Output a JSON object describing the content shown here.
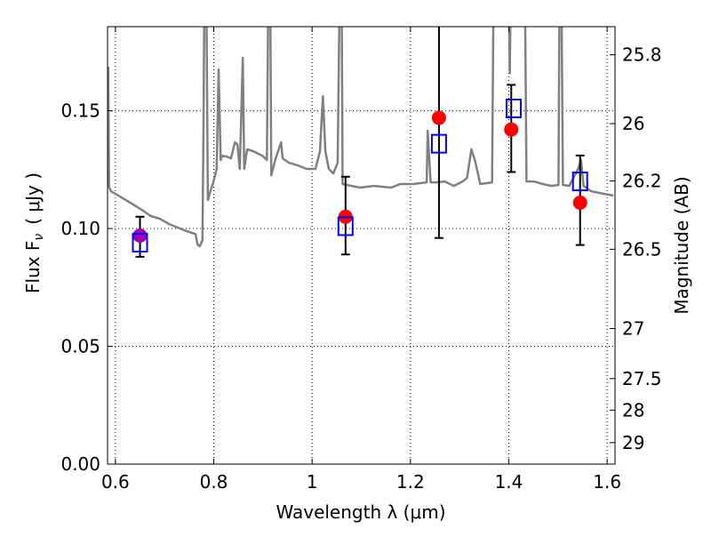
{
  "chart_data": {
    "type": "scatter",
    "xlabel": "Wavelength  λ (μm)",
    "ylabel": "Flux  F",
    "ylabel_sub": "ν",
    "ylabel_unit": "( μJy )",
    "y2label": "Magnitude (AB)",
    "xlim": [
      0.584,
      1.616
    ],
    "ylim": [
      0.0,
      0.1857
    ],
    "xticks": [
      0.6,
      0.8,
      1.0,
      1.2,
      1.4,
      1.6
    ],
    "xtick_labels": [
      "0.6",
      "0.8",
      "1",
      "1.2",
      "1.4",
      "1.6"
    ],
    "yticks": [
      0.0,
      0.05,
      0.1,
      0.15
    ],
    "ytick_labels": [
      "0.00",
      "0.05",
      "0.10",
      "0.15"
    ],
    "y2ticks": [
      25.8,
      26,
      26.2,
      26.5,
      27,
      27.5,
      28,
      29
    ],
    "y2tick_labels": [
      "25.8",
      "26",
      "26.2",
      "26.5",
      "27",
      "27.5",
      "28",
      "29"
    ],
    "ab_zeropoint": 23.9,
    "grid": true,
    "colors": {
      "spectrum": "#808080",
      "observed": "#ff0000",
      "model": "#0000ff",
      "first_observed": "#a000b0",
      "errorbar": "#000000"
    },
    "spectrum": [
      [
        0.5855,
        0.1687
      ],
      [
        0.587,
        0.1177
      ],
      [
        0.591,
        0.1158
      ],
      [
        0.6,
        0.1147
      ],
      [
        0.618,
        0.1125
      ],
      [
        0.636,
        0.1102
      ],
      [
        0.654,
        0.1079
      ],
      [
        0.672,
        0.1053
      ],
      [
        0.69,
        0.1042
      ],
      [
        0.709,
        0.1019
      ],
      [
        0.727,
        0.1004
      ],
      [
        0.745,
        0.0989
      ],
      [
        0.763,
        0.0977
      ],
      [
        0.767,
        0.0932
      ],
      [
        0.772,
        0.0925
      ],
      [
        0.777,
        0.0951
      ],
      [
        0.779,
        0.1404
      ],
      [
        0.781,
        0.2
      ],
      [
        0.785,
        0.2
      ],
      [
        0.788,
        0.1121
      ],
      [
        0.792,
        0.115
      ],
      [
        0.799,
        0.1196
      ],
      [
        0.806,
        0.1253
      ],
      [
        0.81,
        0.1675
      ],
      [
        0.814,
        0.1291
      ],
      [
        0.817,
        0.1309
      ],
      [
        0.826,
        0.1306
      ],
      [
        0.835,
        0.1298
      ],
      [
        0.843,
        0.1366
      ],
      [
        0.848,
        0.1358
      ],
      [
        0.853,
        0.1253
      ],
      [
        0.859,
        0.1725
      ],
      [
        0.862,
        0.1253
      ],
      [
        0.868,
        0.1336
      ],
      [
        0.881,
        0.1328
      ],
      [
        0.899,
        0.1309
      ],
      [
        0.908,
        0.1291
      ],
      [
        0.911,
        0.2
      ],
      [
        0.915,
        0.2
      ],
      [
        0.917,
        0.1226
      ],
      [
        0.926,
        0.1298
      ],
      [
        0.937,
        0.1366
      ],
      [
        0.94,
        0.1298
      ],
      [
        0.953,
        0.1279
      ],
      [
        0.971,
        0.1268
      ],
      [
        0.989,
        0.1253
      ],
      [
        1.007,
        0.1253
      ],
      [
        1.016,
        0.1328
      ],
      [
        1.022,
        0.1562
      ],
      [
        1.027,
        0.1328
      ],
      [
        1.034,
        0.1253
      ],
      [
        1.043,
        0.1234
      ],
      [
        1.052,
        0.1279
      ],
      [
        1.056,
        0.2
      ],
      [
        1.06,
        0.2
      ],
      [
        1.062,
        0.1189
      ],
      [
        1.08,
        0.1181
      ],
      [
        1.098,
        0.1174
      ],
      [
        1.125,
        0.1181
      ],
      [
        1.161,
        0.1174
      ],
      [
        1.179,
        0.1189
      ],
      [
        1.206,
        0.1189
      ],
      [
        1.233,
        0.1196
      ],
      [
        1.235,
        0.1415
      ],
      [
        1.241,
        0.1196
      ],
      [
        1.252,
        0.1196
      ],
      [
        1.27,
        0.12
      ],
      [
        1.288,
        0.1181
      ],
      [
        1.306,
        0.12
      ],
      [
        1.315,
        0.1215
      ],
      [
        1.324,
        0.1336
      ],
      [
        1.331,
        0.1291
      ],
      [
        1.342,
        0.1189
      ],
      [
        1.366,
        0.1196
      ],
      [
        1.369,
        0.2
      ],
      [
        1.4,
        0.2
      ],
      [
        1.402,
        0.166
      ],
      [
        1.404,
        0.2
      ],
      [
        1.433,
        0.2
      ],
      [
        1.436,
        0.12
      ],
      [
        1.451,
        0.12
      ],
      [
        1.469,
        0.1189
      ],
      [
        1.487,
        0.1181
      ],
      [
        1.501,
        0.1185
      ],
      [
        1.503,
        0.2
      ],
      [
        1.507,
        0.2
      ],
      [
        1.51,
        0.1185
      ],
      [
        1.523,
        0.1181
      ],
      [
        1.541,
        0.1253
      ],
      [
        1.547,
        0.1291
      ],
      [
        1.552,
        0.1181
      ],
      [
        1.568,
        0.1158
      ],
      [
        1.595,
        0.1147
      ],
      [
        1.613,
        0.114
      ]
    ],
    "observed": [
      {
        "x": 0.65,
        "y": 0.097,
        "err_low": 0.088,
        "err_high": 0.105
      },
      {
        "x": 1.068,
        "y": 0.105,
        "err_low": 0.089,
        "err_high": 0.122
      },
      {
        "x": 1.258,
        "y": 0.147,
        "err_low": 0.096,
        "err_high": 0.195
      },
      {
        "x": 1.405,
        "y": 0.142,
        "err_low": 0.124,
        "err_high": 0.161
      },
      {
        "x": 1.545,
        "y": 0.111,
        "err_low": 0.093,
        "err_high": 0.131
      }
    ],
    "model": [
      {
        "x": 0.65,
        "y": 0.094
      },
      {
        "x": 1.068,
        "y": 0.101
      },
      {
        "x": 1.258,
        "y": 0.136
      },
      {
        "x": 1.41,
        "y": 0.151
      },
      {
        "x": 1.545,
        "y": 0.12
      }
    ]
  }
}
